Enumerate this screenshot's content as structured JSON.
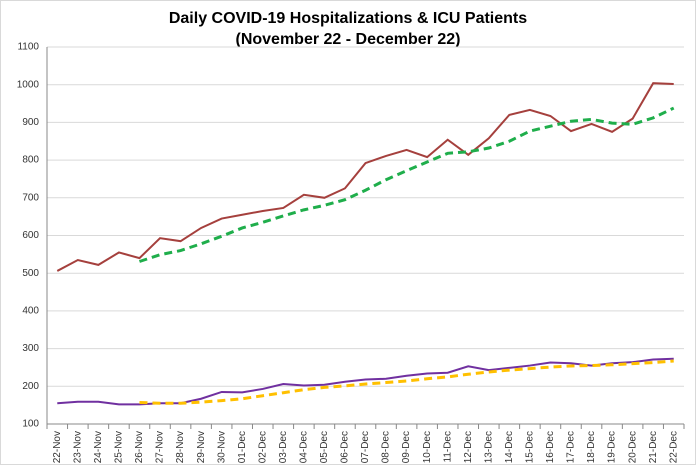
{
  "chart_data": {
    "type": "line",
    "title": [
      "Daily COVID-19 Hospitalizations & ICU Patients",
      "(November 22 - December 22)"
    ],
    "categories": [
      "22-Nov",
      "23-Nov",
      "24-Nov",
      "25-Nov",
      "26-Nov",
      "27-Nov",
      "28-Nov",
      "29-Nov",
      "30-Nov",
      "01-Dec",
      "02-Dec",
      "03-Dec",
      "04-Dec",
      "05-Dec",
      "06-Dec",
      "07-Dec",
      "08-Dec",
      "09-Dec",
      "10-Dec",
      "11-Dec",
      "12-Dec",
      "13-Dec",
      "14-Dec",
      "15-Dec",
      "16-Dec",
      "17-Dec",
      "18-Dec",
      "19-Dec",
      "20-Dec",
      "21-Dec",
      "22-Dec"
    ],
    "series": [
      {
        "color": "#a5403d",
        "dashed": false,
        "values": [
          506,
          535,
          522,
          555,
          540,
          593,
          585,
          620,
          645,
          655,
          665,
          673,
          708,
          700,
          725,
          792,
          811,
          827,
          808,
          854,
          814,
          858,
          920,
          933,
          917,
          877,
          896,
          875,
          910,
          1004,
          1002
        ]
      },
      {
        "color": "#1fae4b",
        "dashed": true,
        "values": [
          null,
          null,
          null,
          null,
          531,
          549,
          560,
          578,
          598,
          620,
          635,
          652,
          668,
          680,
          695,
          720,
          748,
          772,
          795,
          818,
          822,
          832,
          850,
          877,
          890,
          903,
          908,
          898,
          895,
          912,
          938
        ]
      },
      {
        "color": "#7030a0",
        "dashed": false,
        "values": [
          155,
          159,
          159,
          152,
          152,
          155,
          155,
          167,
          185,
          184,
          193,
          206,
          202,
          204,
          212,
          218,
          220,
          228,
          234,
          236,
          253,
          243,
          249,
          255,
          263,
          261,
          255,
          261,
          264,
          271,
          273
        ]
      },
      {
        "color": "#ffc000",
        "dashed": true,
        "values": [
          null,
          null,
          null,
          null,
          157,
          155,
          155,
          158,
          162,
          167,
          175,
          183,
          191,
          197,
          201,
          206,
          210,
          214,
          220,
          225,
          232,
          238,
          243,
          247,
          251,
          254,
          255,
          257,
          260,
          263,
          267
        ]
      }
    ],
    "ylim": [
      100,
      1100
    ],
    "yticks": [
      100,
      200,
      300,
      400,
      500,
      600,
      700,
      800,
      900,
      1000,
      1100
    ],
    "grid": true
  }
}
